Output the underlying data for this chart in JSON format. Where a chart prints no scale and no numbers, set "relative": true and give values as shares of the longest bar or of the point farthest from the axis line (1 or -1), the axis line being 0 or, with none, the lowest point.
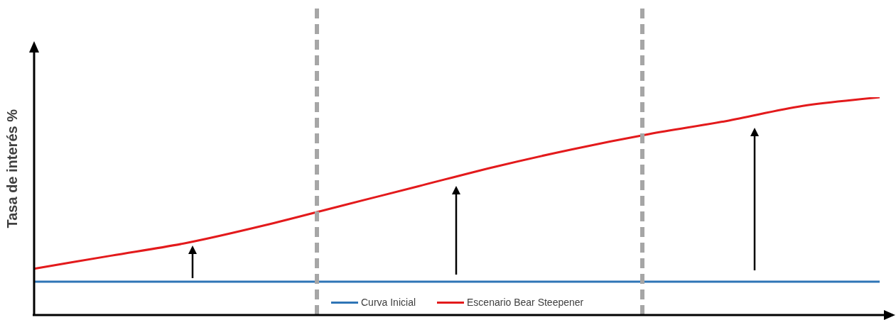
{
  "chart_data": {
    "type": "line",
    "relative": true,
    "ylabel": "Tasa de interés %",
    "legend": "bottom",
    "marker": "none",
    "line_style": "solid",
    "categories": [
      null,
      null,
      null,
      null,
      null,
      null,
      null,
      null,
      null,
      null,
      null,
      null
    ],
    "series": [
      {
        "name": "Curva Inicial",
        "color": "#2e75b6",
        "values": [
          0.15,
          0.15,
          0.15,
          0.15,
          0.15,
          0.15,
          0.15,
          0.15,
          0.15,
          0.15,
          0.15,
          0.15
        ]
      },
      {
        "name": "Escenario Bear Steepener",
        "color": "#e31a1c",
        "values": [
          0.21,
          0.27,
          0.33,
          0.41,
          0.5,
          0.59,
          0.68,
          0.76,
          0.83,
          0.89,
          0.96,
          1.0
        ]
      }
    ]
  }
}
